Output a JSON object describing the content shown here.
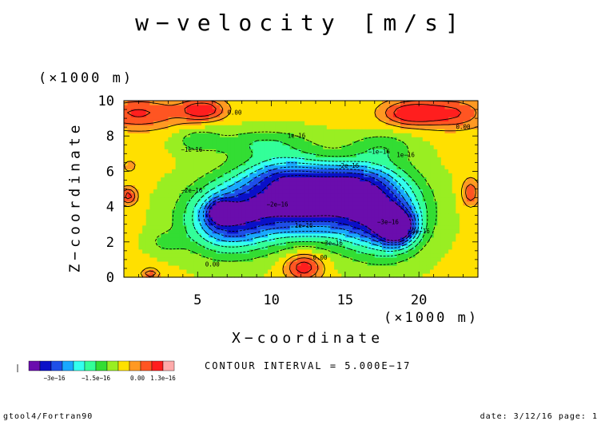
{
  "title": "w−velocity [m/s]",
  "chart_data": {
    "type": "heatmap",
    "xlabel": "X−coordinate",
    "ylabel": "Z−coordinate",
    "x_unit": "(×1000 m)",
    "y_unit": "(×1000 m)",
    "xlim": [
      0,
      24
    ],
    "ylim": [
      0,
      10
    ],
    "xticks": [
      5,
      10,
      15,
      20
    ],
    "yticks": [
      0,
      2,
      4,
      6,
      8,
      10
    ],
    "contour_interval_text": "CONTOUR INTERVAL = 5.000E−17",
    "contour_labels": [
      "0.00",
      "−1e−16",
      "−2e−16",
      "−3e−16",
      "1e−16"
    ],
    "colorbar": {
      "labels": [
        "−3e−16",
        "−1.5e−16",
        "0.00",
        "1.3e−16"
      ],
      "colors": [
        "#6a0dad",
        "#0a10c8",
        "#1f4fe8",
        "#19a8ff",
        "#33ffee",
        "#33ff99",
        "#33dd33",
        "#99ee22",
        "#ffe000",
        "#ff9922",
        "#ff5522",
        "#ff1e1e",
        "#ffaaaa"
      ]
    },
    "fields": {
      "background": 0.05,
      "bumps": [
        {
          "x": 12.2,
          "y": 4.2,
          "sx": 4.8,
          "sy": 1.9,
          "a": -2.4
        },
        {
          "x": 7.0,
          "y": 3.2,
          "sx": 2.8,
          "sy": 1.8,
          "a": -1.6
        },
        {
          "x": 17.5,
          "y": 3.6,
          "sx": 2.7,
          "sy": 2.2,
          "a": -1.8
        },
        {
          "x": 18.5,
          "y": 2.8,
          "sx": 1.2,
          "sy": 0.9,
          "a": -2.0
        },
        {
          "x": 6.5,
          "y": 3.7,
          "sx": 0.8,
          "sy": 0.6,
          "a": -1.2
        },
        {
          "x": 11.0,
          "y": 5.8,
          "sx": 3.0,
          "sy": 1.1,
          "a": -0.9
        },
        {
          "x": 15.5,
          "y": 5.6,
          "sx": 2.5,
          "sy": 1.0,
          "a": -0.8
        },
        {
          "x": 9.5,
          "y": 7.6,
          "sx": 3.2,
          "sy": 0.8,
          "a": -0.6
        },
        {
          "x": 17.5,
          "y": 7.4,
          "sx": 2.2,
          "sy": 0.8,
          "a": -0.5
        },
        {
          "x": 5.0,
          "y": 7.8,
          "sx": 1.6,
          "sy": 0.7,
          "a": -0.5
        },
        {
          "x": 2.8,
          "y": 2.0,
          "sx": 1.2,
          "sy": 0.6,
          "a": -0.4
        },
        {
          "x": 12.2,
          "y": 0.6,
          "sx": 1.3,
          "sy": 0.8,
          "a": 1.1
        },
        {
          "x": 5.4,
          "y": 9.5,
          "sx": 1.5,
          "sy": 0.6,
          "a": 1.1
        },
        {
          "x": 1.0,
          "y": 9.3,
          "sx": 3.2,
          "sy": 0.9,
          "a": 0.9
        },
        {
          "x": 19.5,
          "y": 9.3,
          "sx": 2.0,
          "sy": 0.7,
          "a": 1.2
        },
        {
          "x": 22.5,
          "y": 9.3,
          "sx": 2.2,
          "sy": 0.9,
          "a": 0.8
        },
        {
          "x": 0.3,
          "y": 4.6,
          "sx": 0.6,
          "sy": 0.5,
          "a": 1.0
        },
        {
          "x": 23.5,
          "y": 4.8,
          "sx": 0.6,
          "sy": 0.8,
          "a": 0.8
        },
        {
          "x": 0.4,
          "y": 6.3,
          "sx": 0.4,
          "sy": 0.3,
          "a": 0.6
        },
        {
          "x": 1.8,
          "y": 0.2,
          "sx": 0.6,
          "sy": 0.3,
          "a": 0.8
        }
      ]
    }
  },
  "footer": {
    "left": "gtool4/Fortran90",
    "right": "date: 3/12/16 page: 1"
  }
}
